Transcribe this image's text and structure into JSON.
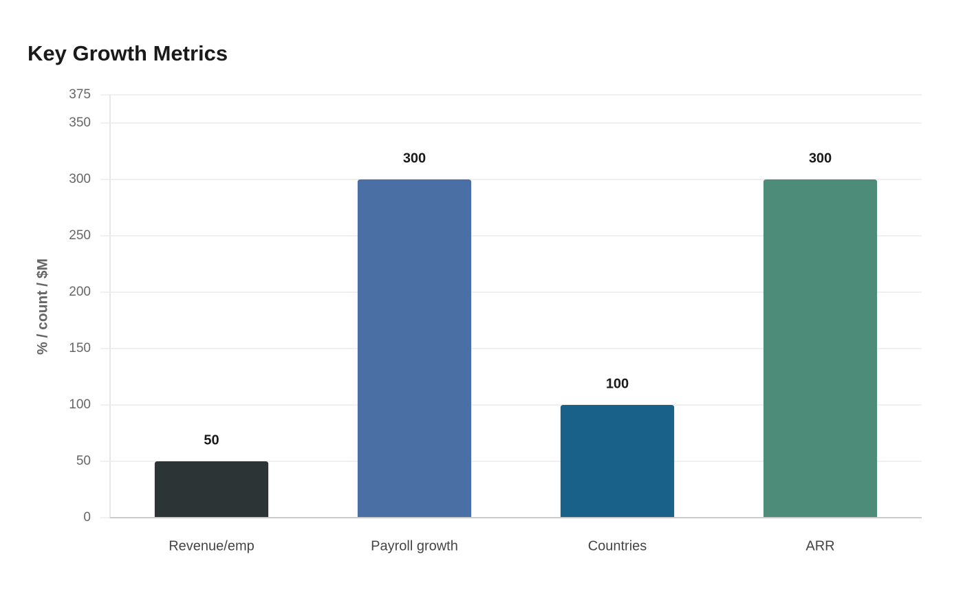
{
  "chart_data": {
    "type": "bar",
    "title": "Key Growth Metrics",
    "y_label": "% / count / $M",
    "categories": [
      "Revenue/emp",
      "Payroll growth",
      "Countries",
      "ARR"
    ],
    "values": [
      50,
      300,
      100,
      300
    ],
    "colors": [
      "#2d3436",
      "#4a6fa5",
      "#1a6189",
      "#4e8c7a"
    ],
    "ylim": [
      0,
      375
    ],
    "yticks": [
      0,
      50,
      100,
      150,
      200,
      250,
      300,
      350,
      375
    ],
    "grid": true
  }
}
